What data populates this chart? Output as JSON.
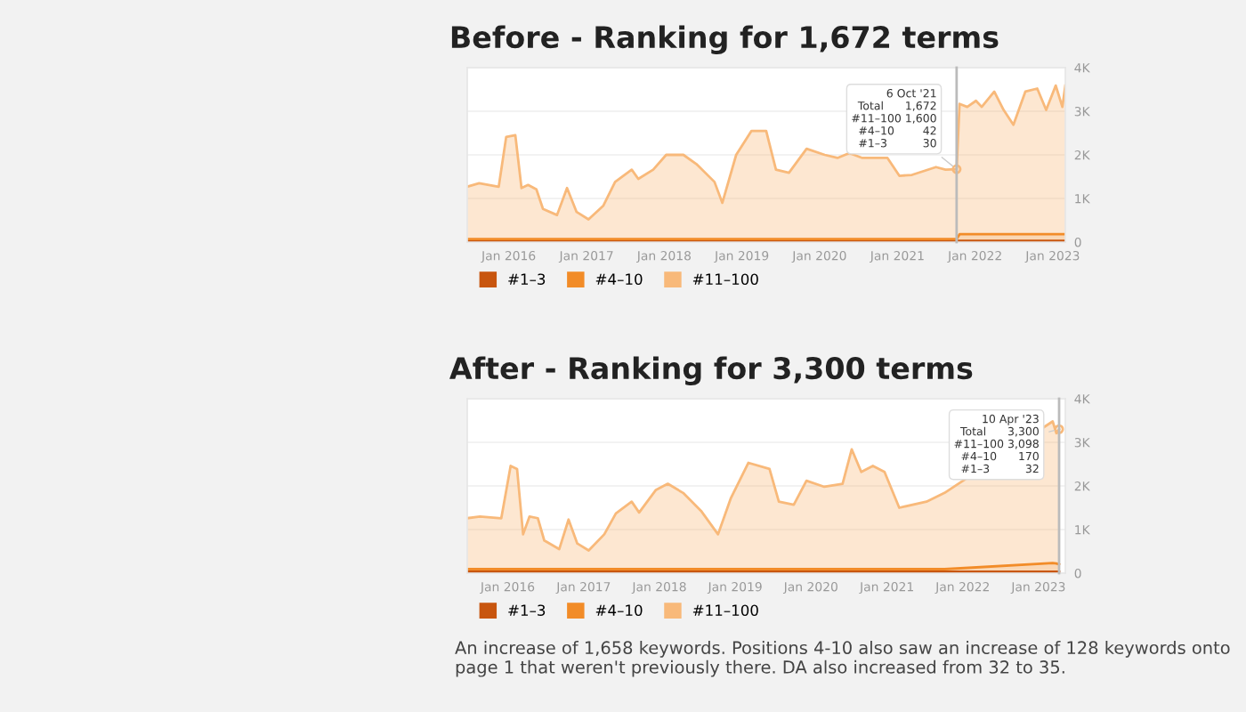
{
  "chart_data": [
    {
      "type": "area",
      "stacked": true,
      "title": "Before - Ranking for 1,672 terms",
      "legend": "bottom left",
      "grid": "y",
      "marker": "none",
      "x": [
        "2015-06-20",
        "2015-08-15",
        "2015-11-15",
        "2015-12-20",
        "2016-02-01",
        "2016-03-01",
        "2016-04-01",
        "2016-05-10",
        "2016-06-10",
        "2016-08-15",
        "2016-10-01",
        "2016-11-15",
        "2017-01-10",
        "2017-03-20",
        "2017-05-15",
        "2017-08-01",
        "2017-09-01",
        "2017-11-10",
        "2018-01-10",
        "2018-04-01",
        "2018-06-01",
        "2018-08-25",
        "2018-10-01",
        "2018-12-05",
        "2019-02-15",
        "2019-04-25",
        "2019-06-10",
        "2019-08-10",
        "2019-11-01",
        "2020-01-25",
        "2020-03-25",
        "2020-05-20",
        "2020-07-20",
        "2020-11-15",
        "2021-01-10",
        "2021-03-10",
        "2021-07-01",
        "2021-08-15",
        "2021-10-06",
        "2021-10-20",
        "2021-11-25",
        "2022-01-05",
        "2022-02-01",
        "2022-04-01",
        "2022-05-15",
        "2022-06-30",
        "2022-08-25",
        "2022-10-20",
        "2022-12-01",
        "2023-01-15",
        "2023-02-15",
        "2023-03-01"
      ],
      "series": [
        {
          "name": "#1–3",
          "color": "#c8560f",
          "values": [
            30,
            30,
            30,
            30,
            30,
            30,
            30,
            30,
            30,
            30,
            30,
            30,
            30,
            30,
            30,
            30,
            30,
            30,
            30,
            30,
            30,
            30,
            30,
            30,
            30,
            30,
            30,
            30,
            30,
            30,
            30,
            30,
            30,
            30,
            30,
            30,
            30,
            30,
            30,
            30,
            30,
            30,
            30,
            30,
            30,
            30,
            30,
            30,
            30,
            30,
            30,
            30
          ]
        },
        {
          "name": "#4–10",
          "color": "#f28c28",
          "values": [
            40,
            40,
            40,
            40,
            40,
            40,
            40,
            40,
            40,
            40,
            40,
            40,
            40,
            40,
            40,
            40,
            40,
            40,
            40,
            40,
            40,
            40,
            40,
            40,
            40,
            40,
            40,
            40,
            40,
            40,
            40,
            40,
            40,
            40,
            40,
            40,
            40,
            40,
            42,
            150,
            150,
            150,
            150,
            150,
            150,
            150,
            150,
            150,
            150,
            150,
            150,
            150
          ]
        },
        {
          "name": "#11–100",
          "color": "#f8b97a",
          "values": [
            1200,
            1280,
            1200,
            2340,
            2380,
            1170,
            1240,
            1140,
            690,
            550,
            1170,
            620,
            450,
            760,
            1310,
            1590,
            1380,
            1590,
            1930,
            1930,
            1720,
            1310,
            830,
            1930,
            2480,
            2480,
            1590,
            1520,
            2070,
            1930,
            1860,
            1970,
            1860,
            1860,
            1450,
            1470,
            1650,
            1590,
            1600,
            2990,
            2920,
            3060,
            2920,
            3270,
            2850,
            2510,
            3270,
            3340,
            2850,
            3410,
            2920,
            3410
          ]
        }
      ],
      "xlim": [
        "2015-06-20",
        "2023-03-01"
      ],
      "xticks": [
        {
          "value": "2016-01-01",
          "label": "Jan 2016"
        },
        {
          "value": "2017-01-01",
          "label": "Jan 2017"
        },
        {
          "value": "2018-01-01",
          "label": "Jan 2018"
        },
        {
          "value": "2019-01-01",
          "label": "Jan 2019"
        },
        {
          "value": "2020-01-01",
          "label": "Jan 2020"
        },
        {
          "value": "2021-01-01",
          "label": "Jan 2021"
        },
        {
          "value": "2022-01-01",
          "label": "Jan 2022"
        },
        {
          "value": "2023-01-01",
          "label": "Jan 2023"
        }
      ],
      "ylim": [
        0,
        4000
      ],
      "yticks": [
        0,
        {
          "value": 1000,
          "label": "1K"
        },
        {
          "value": 2000,
          "label": "2K"
        },
        {
          "value": 3000,
          "label": "3K"
        },
        {
          "value": 4000,
          "label": "4K"
        }
      ],
      "ref_lines": [
        {
          "axis": "x",
          "value": "2021-10-06",
          "color": "#bbbbbb"
        }
      ],
      "annotations": [
        {
          "text": "6 Oct '21\nTotal      1,672\n#11–100 1,600\n#4–10        42\n#1–3          30",
          "x": "2021-10-06",
          "y": 1672
        }
      ]
    },
    {
      "type": "area",
      "stacked": true,
      "title": "After - Ranking for 3,300 terms",
      "legend": "bottom left",
      "grid": "y",
      "marker": "none",
      "x": [
        "2015-06-20",
        "2015-08-20",
        "2015-12-01",
        "2016-01-15",
        "2016-02-15",
        "2016-03-15",
        "2016-04-15",
        "2016-05-25",
        "2016-06-25",
        "2016-09-05",
        "2016-10-20",
        "2016-12-01",
        "2017-01-25",
        "2017-04-10",
        "2017-06-05",
        "2017-08-20",
        "2017-09-25",
        "2017-12-15",
        "2018-02-10",
        "2018-04-25",
        "2018-07-20",
        "2018-10-10",
        "2018-12-10",
        "2019-03-05",
        "2019-06-15",
        "2019-07-30",
        "2019-10-10",
        "2019-12-10",
        "2020-03-05",
        "2020-06-01",
        "2020-07-15",
        "2020-08-30",
        "2020-10-25",
        "2020-12-20",
        "2021-03-01",
        "2021-07-10",
        "2021-10-05",
        "2023-03-10",
        "2023-03-28",
        "2023-04-10"
      ],
      "series": [
        {
          "name": "#1–3",
          "color": "#c8560f",
          "values": [
            32,
            32,
            32,
            32,
            32,
            32,
            32,
            32,
            32,
            32,
            32,
            32,
            32,
            32,
            32,
            32,
            32,
            32,
            32,
            32,
            32,
            32,
            32,
            32,
            32,
            32,
            32,
            32,
            32,
            32,
            32,
            32,
            32,
            32,
            32,
            32,
            32,
            32,
            32,
            32
          ]
        },
        {
          "name": "#4–10",
          "color": "#f28c28",
          "values": [
            60,
            60,
            60,
            60,
            60,
            60,
            60,
            60,
            60,
            60,
            60,
            60,
            60,
            60,
            60,
            60,
            60,
            60,
            60,
            60,
            60,
            60,
            60,
            60,
            60,
            60,
            60,
            60,
            60,
            60,
            60,
            60,
            60,
            60,
            60,
            60,
            60,
            200,
            190,
            170
          ]
        },
        {
          "name": "#11–100",
          "color": "#f8b97a",
          "values": [
            1168,
            1208,
            1168,
            2368,
            2298,
            798,
            1208,
            1168,
            658,
            458,
            1138,
            588,
            428,
            798,
            1278,
            1548,
            1298,
            1818,
            1958,
            1748,
            1338,
            798,
            1618,
            2438,
            2298,
            1548,
            1478,
            2028,
            1888,
            1958,
            2748,
            2228,
            2368,
            2228,
            1408,
            1548,
            1748,
            3248,
            2988,
            3098
          ]
        }
      ],
      "xlim": [
        "2015-06-20",
        "2023-05-10"
      ],
      "xticks": [
        {
          "value": "2016-01-01",
          "label": "Jan 2016"
        },
        {
          "value": "2017-01-01",
          "label": "Jan 2017"
        },
        {
          "value": "2018-01-01",
          "label": "Jan 2018"
        },
        {
          "value": "2019-01-01",
          "label": "Jan 2019"
        },
        {
          "value": "2020-01-01",
          "label": "Jan 2020"
        },
        {
          "value": "2021-01-01",
          "label": "Jan 2021"
        },
        {
          "value": "2022-01-01",
          "label": "Jan 2022"
        },
        {
          "value": "2023-01-01",
          "label": "Jan 2023"
        }
      ],
      "ylim": [
        0,
        4000
      ],
      "yticks": [
        0,
        {
          "value": 1000,
          "label": "1K"
        },
        {
          "value": 2000,
          "label": "2K"
        },
        {
          "value": 3000,
          "label": "3K"
        },
        {
          "value": 4000,
          "label": "4K"
        }
      ],
      "ref_lines": [
        {
          "axis": "x",
          "value": "2023-04-10",
          "color": "#bbbbbb"
        }
      ],
      "annotations": [
        {
          "text": "10 Apr '23\nTotal      3,300\n#11–100 3,098\n#4–10      170\n#1–3          32",
          "x": "2023-04-10",
          "y": 3300
        },
        "An increase of 1,658 keywords. Positions 4-10 also saw an increase of 128 keywords onto page 1 that weren't previously there. DA also increased from 32 to 35."
      ]
    }
  ]
}
